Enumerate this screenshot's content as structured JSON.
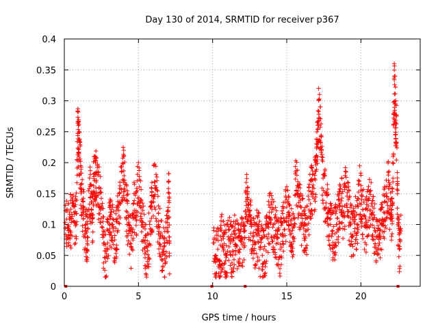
{
  "chart_data": {
    "type": "scatter",
    "title": "Day 130 of 2014, SRMTID for receiver p367",
    "xlabel": "GPS time / hours",
    "ylabel": "SRMTID / TECUs",
    "xlim": [
      0,
      24
    ],
    "ylim": [
      0,
      0.4
    ],
    "xticks": [
      0,
      5,
      10,
      15,
      20
    ],
    "xtick_labels": [
      "0",
      "5",
      "10",
      "15",
      "20"
    ],
    "yticks": [
      0,
      0.05,
      0.1,
      0.15,
      0.2,
      0.25,
      0.3,
      0.35,
      0.4
    ],
    "ytick_labels": [
      "0",
      "0.05",
      "0.1",
      "0.15",
      "0.2",
      "0.25",
      "0.3",
      "0.35",
      "0.4"
    ],
    "grid": true,
    "marker": "plus",
    "color": "#ff0000",
    "series": [
      {
        "name": "SRMTID",
        "points": [
          [
            0.05,
            0.103
          ],
          [
            0.2,
            0.095
          ],
          [
            0.35,
            0.12
          ],
          [
            0.5,
            0.11
          ],
          [
            0.65,
            0.13
          ],
          [
            0.8,
            0.1
          ],
          [
            0.9,
            0.283
          ],
          [
            0.95,
            0.26
          ],
          [
            1.0,
            0.25
          ],
          [
            1.1,
            0.195
          ],
          [
            1.2,
            0.14
          ],
          [
            1.3,
            0.12
          ],
          [
            1.45,
            0.09
          ],
          [
            1.55,
            0.08
          ],
          [
            1.7,
            0.175
          ],
          [
            1.8,
            0.15
          ],
          [
            1.9,
            0.11
          ],
          [
            2.0,
            0.21
          ],
          [
            2.1,
            0.2
          ],
          [
            2.2,
            0.185
          ],
          [
            2.35,
            0.16
          ],
          [
            2.5,
            0.13
          ],
          [
            2.65,
            0.07
          ],
          [
            2.8,
            0.04
          ],
          [
            2.95,
            0.09
          ],
          [
            3.1,
            0.12
          ],
          [
            3.25,
            0.1
          ],
          [
            3.4,
            0.075
          ],
          [
            3.55,
            0.105
          ],
          [
            3.7,
            0.15
          ],
          [
            3.85,
            0.185
          ],
          [
            4.0,
            0.21
          ],
          [
            4.1,
            0.165
          ],
          [
            4.25,
            0.12
          ],
          [
            4.4,
            0.09
          ],
          [
            4.55,
            0.06
          ],
          [
            4.7,
            0.15
          ],
          [
            4.85,
            0.12
          ],
          [
            5.0,
            0.2
          ],
          [
            5.15,
            0.14
          ],
          [
            5.3,
            0.1
          ],
          [
            5.45,
            0.07
          ],
          [
            5.6,
            0.04
          ],
          [
            5.75,
            0.1
          ],
          [
            5.9,
            0.135
          ],
          [
            6.05,
            0.195
          ],
          [
            6.2,
            0.16
          ],
          [
            6.35,
            0.1
          ],
          [
            6.5,
            0.08
          ],
          [
            6.65,
            0.06
          ],
          [
            6.8,
            0.05
          ],
          [
            6.95,
            0.11
          ],
          [
            7.05,
            0.17
          ],
          [
            7.1,
            0.02
          ],
          [
            10.05,
            0.07
          ],
          [
            10.2,
            0.05
          ],
          [
            10.35,
            0.06
          ],
          [
            10.5,
            0.04
          ],
          [
            10.6,
            0.075
          ],
          [
            10.75,
            0.06
          ],
          [
            10.9,
            0.05
          ],
          [
            11.05,
            0.08
          ],
          [
            11.2,
            0.07
          ],
          [
            11.35,
            0.05
          ],
          [
            11.5,
            0.09
          ],
          [
            11.65,
            0.065
          ],
          [
            11.8,
            0.055
          ],
          [
            11.95,
            0.08
          ],
          [
            12.1,
            0.07
          ],
          [
            12.25,
            0.155
          ],
          [
            12.35,
            0.14
          ],
          [
            12.45,
            0.12
          ],
          [
            12.6,
            0.1
          ],
          [
            12.75,
            0.08
          ],
          [
            12.9,
            0.07
          ],
          [
            13.05,
            0.09
          ],
          [
            13.2,
            0.06
          ],
          [
            13.35,
            0.05
          ],
          [
            13.5,
            0.04
          ],
          [
            13.65,
            0.08
          ],
          [
            13.8,
            0.11
          ],
          [
            13.95,
            0.135
          ],
          [
            14.1,
            0.1
          ],
          [
            14.25,
            0.09
          ],
          [
            14.4,
            0.07
          ],
          [
            14.55,
            0.06
          ],
          [
            14.7,
            0.085
          ],
          [
            14.85,
            0.105
          ],
          [
            15.0,
            0.14
          ],
          [
            15.15,
            0.12
          ],
          [
            15.3,
            0.1
          ],
          [
            15.45,
            0.08
          ],
          [
            15.6,
            0.185
          ],
          [
            15.75,
            0.16
          ],
          [
            15.9,
            0.13
          ],
          [
            16.05,
            0.11
          ],
          [
            16.2,
            0.1
          ],
          [
            16.35,
            0.09
          ],
          [
            16.5,
            0.14
          ],
          [
            16.65,
            0.17
          ],
          [
            16.8,
            0.15
          ],
          [
            16.95,
            0.2
          ],
          [
            17.05,
            0.265
          ],
          [
            17.15,
            0.32
          ],
          [
            17.25,
            0.29
          ],
          [
            17.35,
            0.22
          ],
          [
            17.5,
            0.18
          ],
          [
            17.65,
            0.15
          ],
          [
            17.8,
            0.12
          ],
          [
            17.95,
            0.1
          ],
          [
            18.1,
            0.09
          ],
          [
            18.25,
            0.085
          ],
          [
            18.4,
            0.11
          ],
          [
            18.55,
            0.13
          ],
          [
            18.7,
            0.15
          ],
          [
            18.85,
            0.12
          ],
          [
            19.0,
            0.185
          ],
          [
            19.15,
            0.14
          ],
          [
            19.3,
            0.1
          ],
          [
            19.45,
            0.08
          ],
          [
            19.6,
            0.12
          ],
          [
            19.75,
            0.1
          ],
          [
            19.9,
            0.17
          ],
          [
            20.05,
            0.14
          ],
          [
            20.2,
            0.115
          ],
          [
            20.35,
            0.1
          ],
          [
            20.5,
            0.13
          ],
          [
            20.65,
            0.155
          ],
          [
            20.8,
            0.12
          ],
          [
            20.95,
            0.09
          ],
          [
            21.1,
            0.08
          ],
          [
            21.25,
            0.07
          ],
          [
            21.4,
            0.1
          ],
          [
            21.55,
            0.12
          ],
          [
            21.7,
            0.15
          ],
          [
            21.85,
            0.18
          ],
          [
            22.0,
            0.13
          ],
          [
            22.1,
            0.11
          ],
          [
            22.15,
            0.2
          ],
          [
            22.25,
            0.36
          ],
          [
            22.3,
            0.34
          ],
          [
            22.35,
            0.3
          ],
          [
            22.4,
            0.275
          ],
          [
            22.5,
            0.1
          ],
          [
            22.6,
            0.06
          ],
          [
            22.7,
            0.115
          ]
        ]
      }
    ],
    "baseline_markers_x": [
      0.1,
      9.95,
      12.2,
      22.5
    ]
  }
}
